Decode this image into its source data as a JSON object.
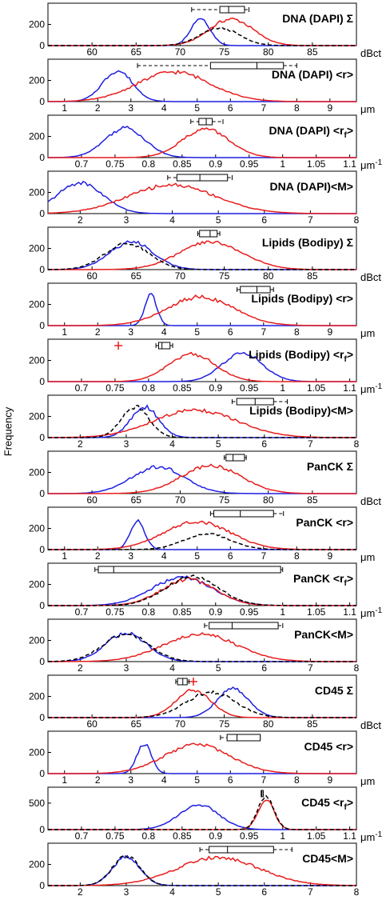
{
  "figure": {
    "ylabel": "Frequency"
  },
  "colors": {
    "blue": "#1f1fe0",
    "red": "#e81c1c",
    "black": "#000000"
  },
  "axes": {
    "dbct": {
      "range": [
        55,
        90
      ],
      "ticks": [
        60,
        65,
        70,
        75,
        80,
        85
      ],
      "unit": "dBct"
    },
    "r": {
      "range": [
        0.5,
        9.8
      ],
      "ticks": [
        1,
        2,
        3,
        4,
        5,
        6,
        7,
        8,
        9
      ],
      "unit": "μm"
    },
    "rf": {
      "range": [
        0.65,
        1.11
      ],
      "ticks": [
        0.7,
        0.75,
        0.8,
        0.85,
        0.9,
        0.95,
        1,
        1.05,
        1.1
      ],
      "unit": "μm-1"
    },
    "m": {
      "range": [
        1.3,
        8.0
      ],
      "ticks": [
        2,
        3,
        4,
        5,
        6,
        7,
        8
      ],
      "unit": ""
    }
  },
  "chart_data": [
    {
      "type": "line",
      "title": "DNA (DAPI) Σ",
      "axis": "dbct",
      "ylim": [
        0,
        400
      ],
      "yticks": [
        0,
        200
      ],
      "grid": false,
      "box": {
        "whisker": [
          71.3,
          77.8
        ],
        "q": [
          74.5,
          77.3
        ],
        "median": 75.5
      },
      "outliers": [],
      "series": [
        {
          "name": "blue",
          "color": "blue",
          "peak": 72.3,
          "width": 1.1,
          "height": 260
        },
        {
          "name": "red",
          "color": "red",
          "peak": 75.8,
          "width": 2.5,
          "height": 250
        },
        {
          "name": "black",
          "color": "black",
          "dashed": true,
          "peak": 74.5,
          "width": 2.2,
          "height": 165
        }
      ]
    },
    {
      "type": "line",
      "title": "DNA (DAPI) <r>",
      "axis": "r",
      "ylim": [
        0,
        400
      ],
      "yticks": [
        0,
        200
      ],
      "grid": false,
      "box": {
        "whisker": [
          3.2,
          8.0
        ],
        "q": [
          5.4,
          7.6
        ],
        "median": 6.8
      },
      "outliers": [],
      "series": [
        {
          "name": "blue",
          "color": "blue",
          "peak": 2.6,
          "width": 0.45,
          "height": 290
        },
        {
          "name": "red",
          "color": "red",
          "peak": 4.3,
          "width": 1.1,
          "height": 280
        }
      ]
    },
    {
      "type": "line",
      "title": "DNA (DAPI) <r_f>",
      "axis": "rf",
      "ylim": [
        0,
        400
      ],
      "yticks": [
        0,
        200
      ],
      "grid": false,
      "box": {
        "whisker": [
          0.863,
          0.911
        ],
        "q": [
          0.875,
          0.895
        ],
        "median": 0.886
      },
      "outliers": [],
      "series": [
        {
          "name": "blue",
          "color": "blue",
          "peak": 0.765,
          "width": 0.03,
          "height": 280
        },
        {
          "name": "red",
          "color": "red",
          "peak": 0.885,
          "width": 0.035,
          "height": 270
        }
      ]
    },
    {
      "type": "line",
      "title": "DNA (DAPI)<M>",
      "axis": "m",
      "ylim": [
        0,
        400
      ],
      "yticks": [
        0,
        200
      ],
      "grid": false,
      "box": {
        "whisker": [
          3.9,
          5.3
        ],
        "q": [
          4.1,
          5.2
        ],
        "median": 4.6
      },
      "outliers": [],
      "series": [
        {
          "name": "blue",
          "color": "blue",
          "peak": 2.0,
          "width": 0.5,
          "height": 290
        },
        {
          "name": "red",
          "color": "red",
          "peak": 4.0,
          "width": 0.95,
          "height": 270
        }
      ]
    },
    {
      "type": "line",
      "title": "Lipids (Bodipy) Σ",
      "axis": "dbct",
      "ylim": [
        0,
        400
      ],
      "yticks": [
        0,
        200
      ],
      "grid": false,
      "box": {
        "whisker": [
          72.0,
          74.5
        ],
        "q": [
          72.2,
          74.2
        ],
        "median": 73.4
      },
      "outliers": [],
      "series": [
        {
          "name": "blue",
          "color": "blue",
          "peak": 64.5,
          "width": 2.5,
          "height": 260
        },
        {
          "name": "red",
          "color": "red",
          "peak": 73.5,
          "width": 3.6,
          "height": 260
        },
        {
          "name": "black",
          "color": "black",
          "dashed": true,
          "peak": 64.0,
          "width": 2.5,
          "height": 250
        }
      ]
    },
    {
      "type": "line",
      "title": "Lipids (Bodipy) <r>",
      "axis": "r",
      "ylim": [
        0,
        400
      ],
      "yticks": [
        0,
        200
      ],
      "grid": false,
      "box": {
        "whisker": [
          6.2,
          7.3
        ],
        "q": [
          6.3,
          7.2
        ],
        "median": 6.8
      },
      "outliers": [],
      "series": [
        {
          "name": "blue",
          "color": "blue",
          "peak": 3.6,
          "width": 0.18,
          "height": 290
        },
        {
          "name": "red",
          "color": "red",
          "peak": 5.1,
          "width": 1.0,
          "height": 270
        }
      ]
    },
    {
      "type": "line",
      "title": "Lipids (Bodipy) <r_f>",
      "axis": "rf",
      "ylim": [
        0,
        400
      ],
      "yticks": [
        0,
        200
      ],
      "grid": false,
      "box": {
        "whisker": [
          0.811,
          0.836
        ],
        "q": [
          0.815,
          0.832
        ],
        "median": 0.82
      },
      "outliers": [
        0.755
      ],
      "series": [
        {
          "name": "blue",
          "color": "blue",
          "peak": 0.94,
          "width": 0.03,
          "height": 270
        },
        {
          "name": "red",
          "color": "red",
          "peak": 0.865,
          "width": 0.035,
          "height": 260
        }
      ]
    },
    {
      "type": "line",
      "title": "Lipids (Bodipy)<M>",
      "axis": "m",
      "ylim": [
        0,
        400
      ],
      "yticks": [
        0,
        200
      ],
      "grid": false,
      "box": {
        "whisker": [
          5.3,
          6.5
        ],
        "q": [
          5.4,
          6.2
        ],
        "median": 5.8
      },
      "outliers": [],
      "series": [
        {
          "name": "blue",
          "color": "blue",
          "peak": 3.4,
          "width": 0.3,
          "height": 290
        },
        {
          "name": "red",
          "color": "red",
          "peak": 4.5,
          "width": 0.9,
          "height": 260
        },
        {
          "name": "black",
          "color": "black",
          "dashed": true,
          "peak": 3.2,
          "width": 0.3,
          "height": 290
        }
      ]
    },
    {
      "type": "line",
      "title": "PanCK Σ",
      "axis": "dbct",
      "ylim": [
        0,
        400
      ],
      "yticks": [
        0,
        200
      ],
      "grid": false,
      "box": {
        "whisker": [
          75.0,
          77.5
        ],
        "q": [
          75.2,
          77.3
        ],
        "median": 76.0
      },
      "outliers": [],
      "series": [
        {
          "name": "blue",
          "color": "blue",
          "peak": 67.5,
          "width": 3.0,
          "height": 250
        },
        {
          "name": "red",
          "color": "red",
          "peak": 73.5,
          "width": 3.4,
          "height": 265
        }
      ]
    },
    {
      "type": "line",
      "title": "PanCK <r>",
      "axis": "r",
      "ylim": [
        0,
        400
      ],
      "yticks": [
        0,
        200
      ],
      "grid": false,
      "box": {
        "whisker": [
          5.4,
          7.6
        ],
        "q": [
          5.5,
          7.3
        ],
        "median": 6.3
      },
      "outliers": [],
      "series": [
        {
          "name": "blue",
          "color": "blue",
          "peak": 3.2,
          "width": 0.22,
          "height": 270
        },
        {
          "name": "red",
          "color": "red",
          "peak": 5.0,
          "width": 1.0,
          "height": 265
        },
        {
          "name": "black",
          "color": "black",
          "dashed": true,
          "peak": 5.3,
          "width": 0.7,
          "height": 150
        }
      ]
    },
    {
      "type": "line",
      "title": "PanCK <r_f>",
      "axis": "rf",
      "ylim": [
        0,
        400
      ],
      "yticks": [
        0,
        200
      ],
      "grid": false,
      "box": {
        "whisker": [
          0.72,
          1.0
        ],
        "q": [
          0.725,
          0.997
        ],
        "median": 0.748
      },
      "outliers": [],
      "series": [
        {
          "name": "blue",
          "color": "blue",
          "peak": 0.85,
          "width": 0.045,
          "height": 265
        },
        {
          "name": "red",
          "color": "red",
          "peak": 0.86,
          "width": 0.04,
          "height": 250
        },
        {
          "name": "black",
          "color": "black",
          "dashed": true,
          "peak": 0.865,
          "width": 0.04,
          "height": 270
        }
      ]
    },
    {
      "type": "line",
      "title": "PanCK<M>",
      "axis": "m",
      "ylim": [
        0,
        400
      ],
      "yticks": [
        0,
        200
      ],
      "grid": false,
      "box": {
        "whisker": [
          4.7,
          6.4
        ],
        "q": [
          4.8,
          6.3
        ],
        "median": 5.3
      },
      "outliers": [],
      "series": [
        {
          "name": "blue",
          "color": "blue",
          "peak": 3.0,
          "width": 0.45,
          "height": 270
        },
        {
          "name": "red",
          "color": "red",
          "peak": 4.6,
          "width": 0.8,
          "height": 260
        },
        {
          "name": "black",
          "color": "black",
          "dashed": true,
          "peak": 3.0,
          "width": 0.5,
          "height": 260
        }
      ]
    },
    {
      "type": "line",
      "title": "CD45 Σ",
      "axis": "dbct",
      "ylim": [
        0,
        400
      ],
      "yticks": [
        0,
        200
      ],
      "grid": false,
      "box": {
        "whisker": [
          69.5,
          71.0
        ],
        "q": [
          69.7,
          70.8
        ],
        "median": 70.3
      },
      "outliers": [
        71.5
      ],
      "series": [
        {
          "name": "blue",
          "color": "blue",
          "peak": 76.0,
          "width": 1.8,
          "height": 270
        },
        {
          "name": "red",
          "color": "red",
          "peak": 71.5,
          "width": 2.0,
          "height": 260
        },
        {
          "name": "black",
          "color": "black",
          "dashed": true,
          "peak": 73.5,
          "width": 2.8,
          "height": 240
        }
      ]
    },
    {
      "type": "line",
      "title": "CD45 <r>",
      "axis": "r",
      "ylim": [
        0,
        400
      ],
      "yticks": [
        0,
        200
      ],
      "grid": false,
      "box": {
        "whisker": [
          5.7,
          6.9
        ],
        "q": [
          5.9,
          6.9
        ],
        "median": 6.2
      },
      "outliers": [],
      "series": [
        {
          "name": "blue",
          "color": "blue",
          "peak": 3.4,
          "width": 0.22,
          "height": 280
        },
        {
          "name": "red",
          "color": "red",
          "peak": 5.0,
          "width": 1.0,
          "height": 270
        }
      ]
    },
    {
      "type": "line",
      "title": "CD45 <r_f>",
      "axis": "rf",
      "ylim": [
        0,
        800
      ],
      "yticks": [
        0,
        500
      ],
      "grid": false,
      "box": {
        "whisker": [
          0.968,
          0.971
        ],
        "q": [
          0.968,
          0.971
        ],
        "median": 0.969
      },
      "outliers": [],
      "series": [
        {
          "name": "blue",
          "color": "blue",
          "peak": 0.875,
          "width": 0.03,
          "height": 470
        },
        {
          "name": "red",
          "color": "red",
          "peak": 0.975,
          "width": 0.012,
          "height": 560
        },
        {
          "name": "black",
          "color": "black",
          "dashed": true,
          "peak": 0.975,
          "width": 0.012,
          "height": 620
        }
      ]
    },
    {
      "type": "line",
      "title": "CD45<M>",
      "axis": "m",
      "ylim": [
        0,
        400
      ],
      "yticks": [
        0,
        200
      ],
      "grid": false,
      "box": {
        "whisker": [
          4.6,
          6.6
        ],
        "q": [
          4.8,
          6.2
        ],
        "median": 5.2
      },
      "outliers": [],
      "series": [
        {
          "name": "blue",
          "color": "blue",
          "peak": 3.0,
          "width": 0.3,
          "height": 270
        },
        {
          "name": "red",
          "color": "red",
          "peak": 5.0,
          "width": 0.9,
          "height": 265
        },
        {
          "name": "black",
          "color": "black",
          "dashed": true,
          "peak": 3.0,
          "width": 0.3,
          "height": 280
        }
      ]
    }
  ]
}
